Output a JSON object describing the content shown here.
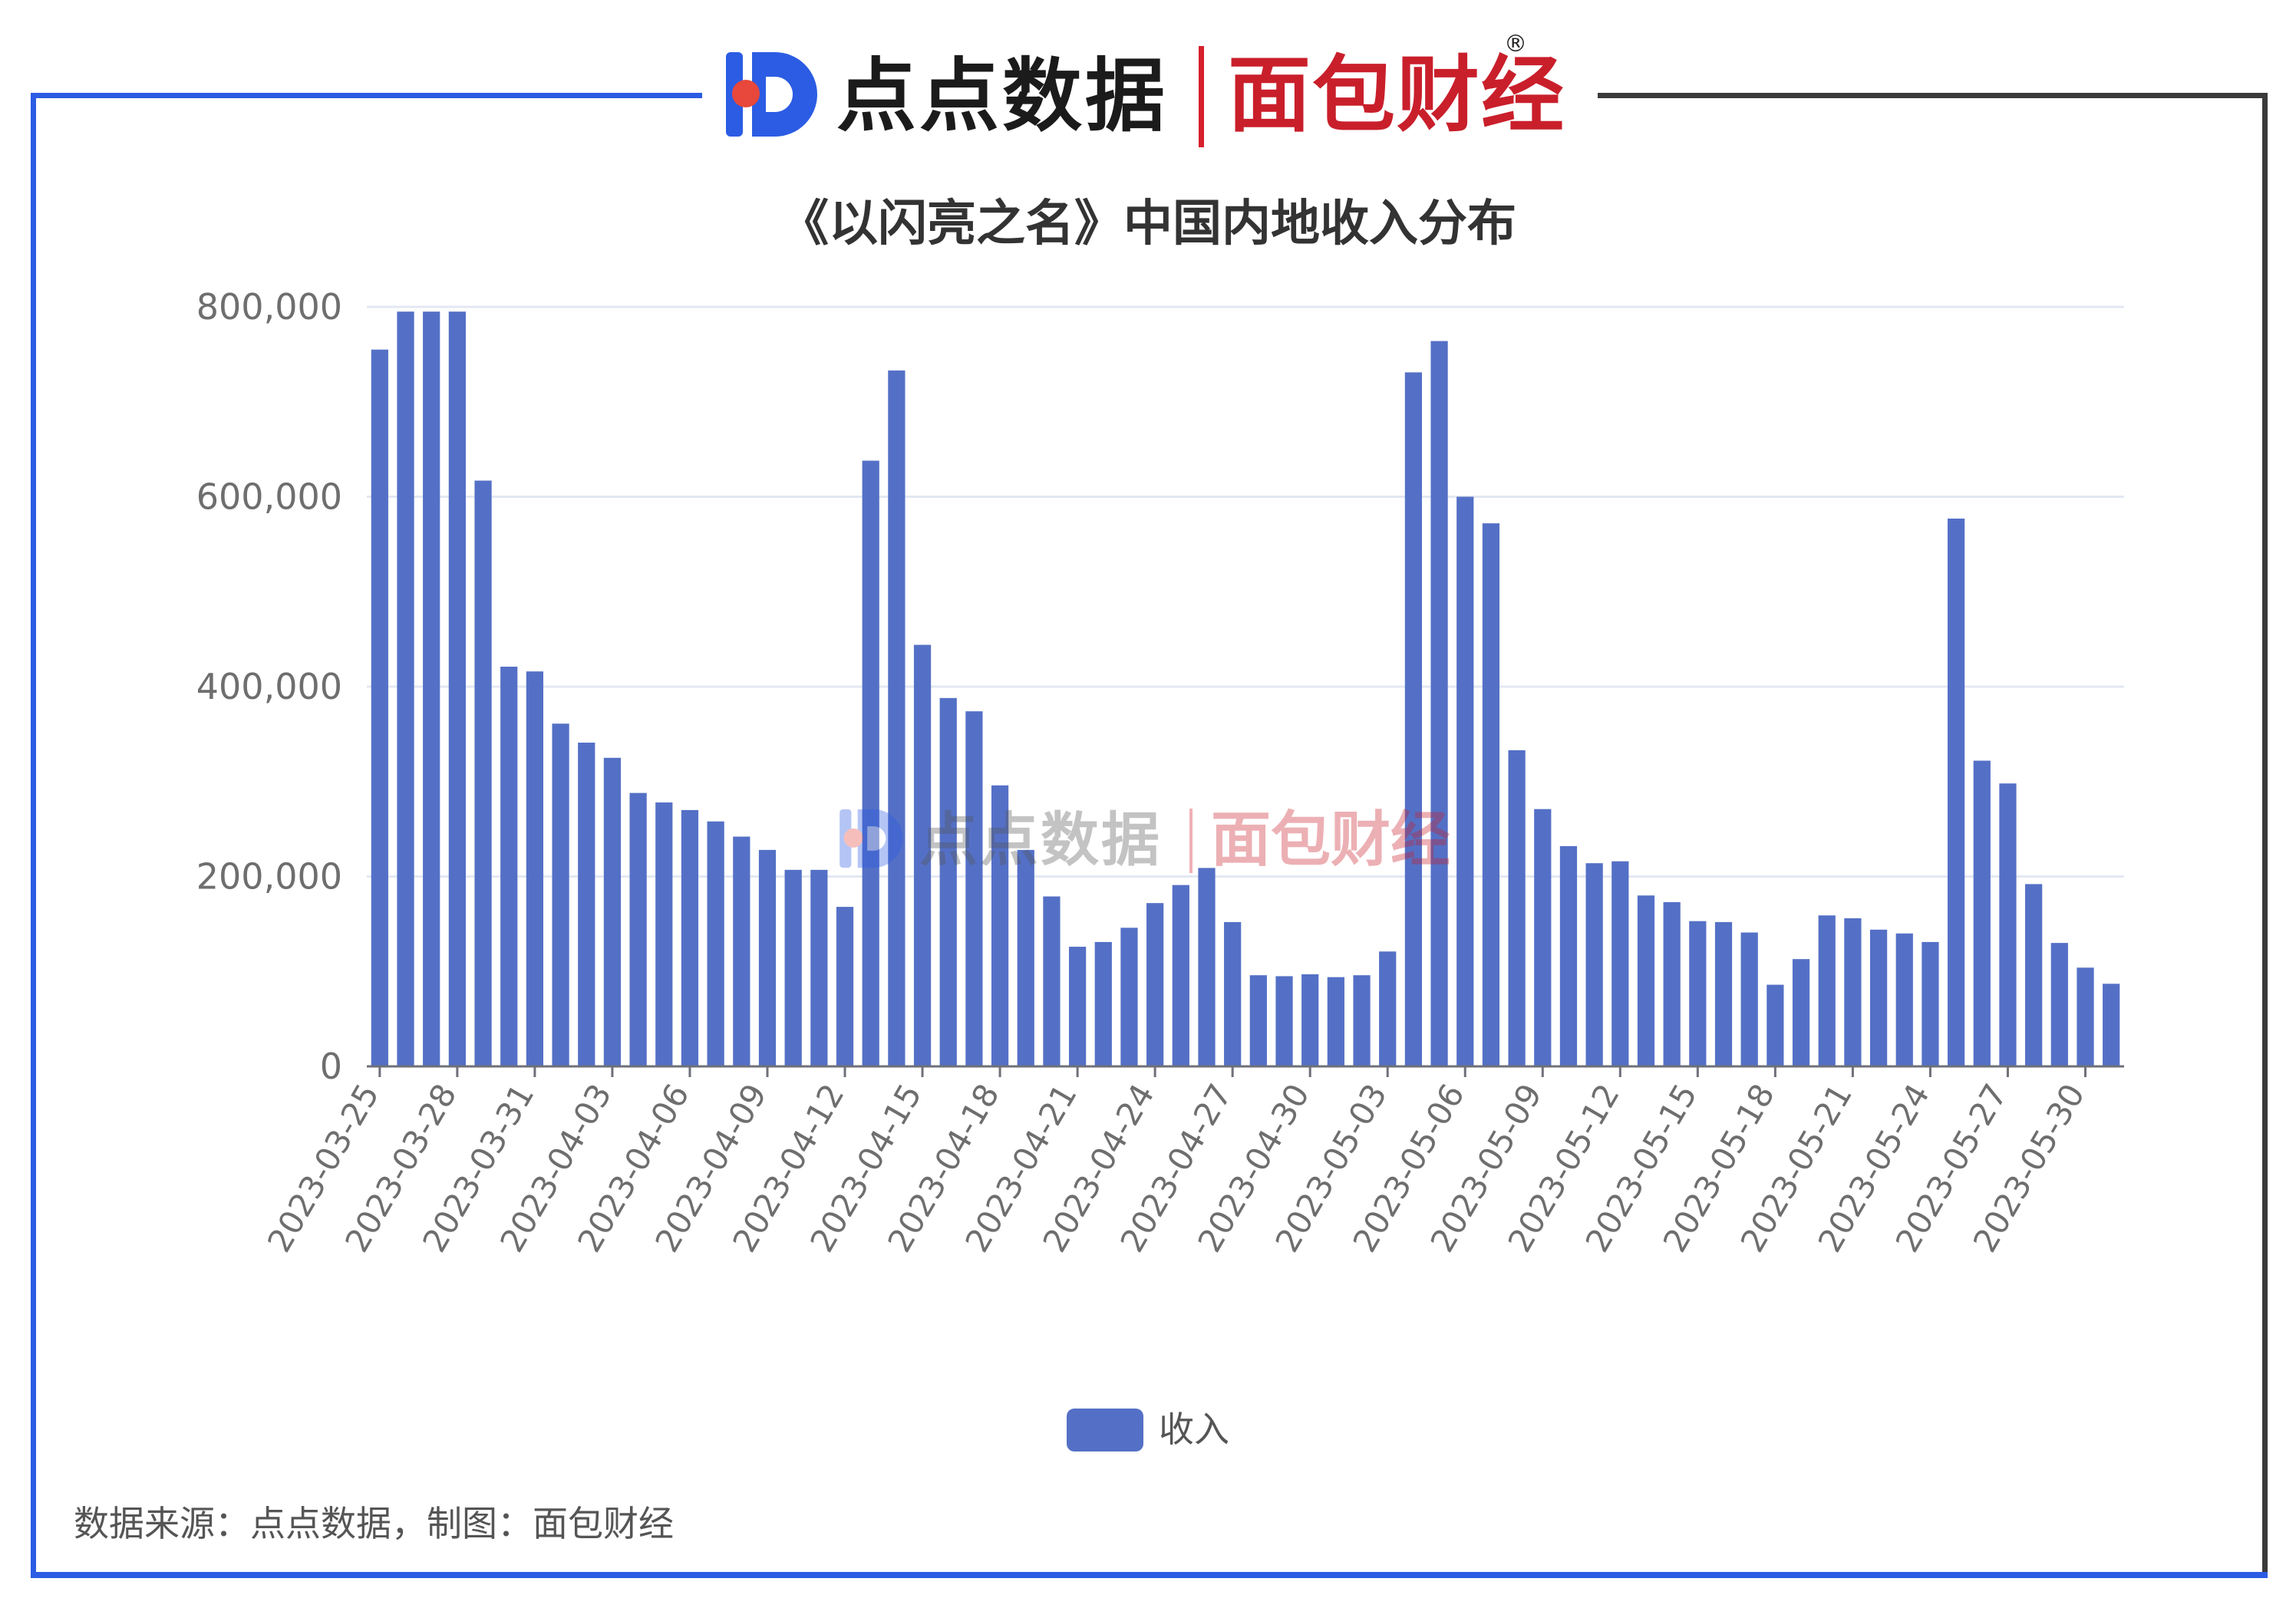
{
  "header": {
    "logo_left_text": "点点数据",
    "logo_right_text": "面包财经",
    "registered_mark": "®"
  },
  "watermark": {
    "left_text": "点点数据",
    "right_text": "面包财经"
  },
  "colors": {
    "bar": "#5470c6",
    "frame_blue": "#2b5ce3",
    "frame_dark": "#3a3a3a",
    "brand_red": "#c91f2b"
  },
  "chart_data": {
    "type": "bar",
    "title": "《以闪亮之名》中国内地收入分布",
    "xlabel": "",
    "ylabel": "",
    "ylim": [
      0,
      800000
    ],
    "yticks": [
      "0",
      "200,000",
      "400,000",
      "600,000",
      "800,000"
    ],
    "grid": true,
    "legend_position": "bottom-center",
    "xtick_labels": [
      "2023-03-25",
      "2023-03-28",
      "2023-03-31",
      "2023-04-03",
      "2023-04-06",
      "2023-04-09",
      "2023-04-12",
      "2023-04-15",
      "2023-04-18",
      "2023-04-21",
      "2023-04-24",
      "2023-04-27",
      "2023-04-30",
      "2023-05-03",
      "2023-05-06",
      "2023-05-09",
      "2023-05-12",
      "2023-05-15",
      "2023-05-18",
      "2023-05-21",
      "2023-05-24",
      "2023-05-27",
      "2023-05-30"
    ],
    "categories": [
      "2023-03-25",
      "2023-03-26",
      "2023-03-27",
      "2023-03-28",
      "2023-03-29",
      "2023-03-30",
      "2023-03-31",
      "2023-04-01",
      "2023-04-02",
      "2023-04-03",
      "2023-04-04",
      "2023-04-05",
      "2023-04-06",
      "2023-04-07",
      "2023-04-08",
      "2023-04-09",
      "2023-04-10",
      "2023-04-11",
      "2023-04-12",
      "2023-04-13",
      "2023-04-14",
      "2023-04-15",
      "2023-04-16",
      "2023-04-17",
      "2023-04-18",
      "2023-04-19",
      "2023-04-20",
      "2023-04-21",
      "2023-04-22",
      "2023-04-23",
      "2023-04-24",
      "2023-04-25",
      "2023-04-26",
      "2023-04-27",
      "2023-04-28",
      "2023-04-29",
      "2023-04-30",
      "2023-05-01",
      "2023-05-02",
      "2023-05-03",
      "2023-05-04",
      "2023-05-05",
      "2023-05-06",
      "2023-05-07",
      "2023-05-08",
      "2023-05-09",
      "2023-05-10",
      "2023-05-11",
      "2023-05-12",
      "2023-05-13",
      "2023-05-14",
      "2023-05-15",
      "2023-05-16",
      "2023-05-17",
      "2023-05-18",
      "2023-05-19",
      "2023-05-20",
      "2023-05-21",
      "2023-05-22",
      "2023-05-23",
      "2023-05-24",
      "2023-05-25",
      "2023-05-26",
      "2023-05-27",
      "2023-05-28",
      "2023-05-29",
      "2023-05-30",
      "2023-05-31"
    ],
    "series": [
      {
        "name": "收入",
        "values": [
          755000,
          795000,
          795000,
          795000,
          617000,
          421000,
          416000,
          361000,
          341000,
          325000,
          288000,
          278000,
          270000,
          258000,
          242000,
          228000,
          207000,
          207000,
          168000,
          638000,
          733000,
          444000,
          388000,
          374000,
          296000,
          228000,
          179000,
          126000,
          131000,
          146000,
          172000,
          191000,
          209000,
          152000,
          96000,
          95000,
          97000,
          94000,
          96000,
          121000,
          731000,
          764000,
          600000,
          572000,
          333000,
          271000,
          232000,
          214000,
          216000,
          180000,
          173000,
          153000,
          152000,
          141000,
          86000,
          113000,
          159000,
          156000,
          144000,
          140000,
          131000,
          577000,
          322000,
          298000,
          192000,
          130000,
          104000,
          87000
        ]
      }
    ]
  },
  "legend": {
    "label": "收入"
  },
  "footer": {
    "source_note": "数据来源：点点数据，制图：面包财经"
  }
}
